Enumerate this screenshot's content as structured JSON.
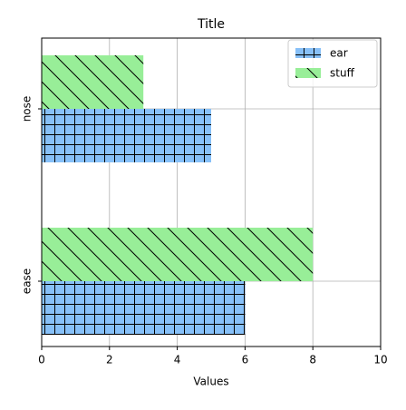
{
  "chart_data": {
    "type": "barh",
    "title": "Title",
    "x_label": "Values",
    "categories": [
      "ease",
      "nose"
    ],
    "series": [
      {
        "name": "ear",
        "color": "#87c0f8",
        "values": [
          6,
          5
        ]
      },
      {
        "name": "stuff",
        "color": "#98ee98",
        "values": [
          8,
          3
        ]
      }
    ],
    "xlim": [
      0,
      10
    ],
    "xticks": [
      0,
      2,
      4,
      6,
      8,
      10
    ],
    "grid": true,
    "legend": "upper right"
  }
}
